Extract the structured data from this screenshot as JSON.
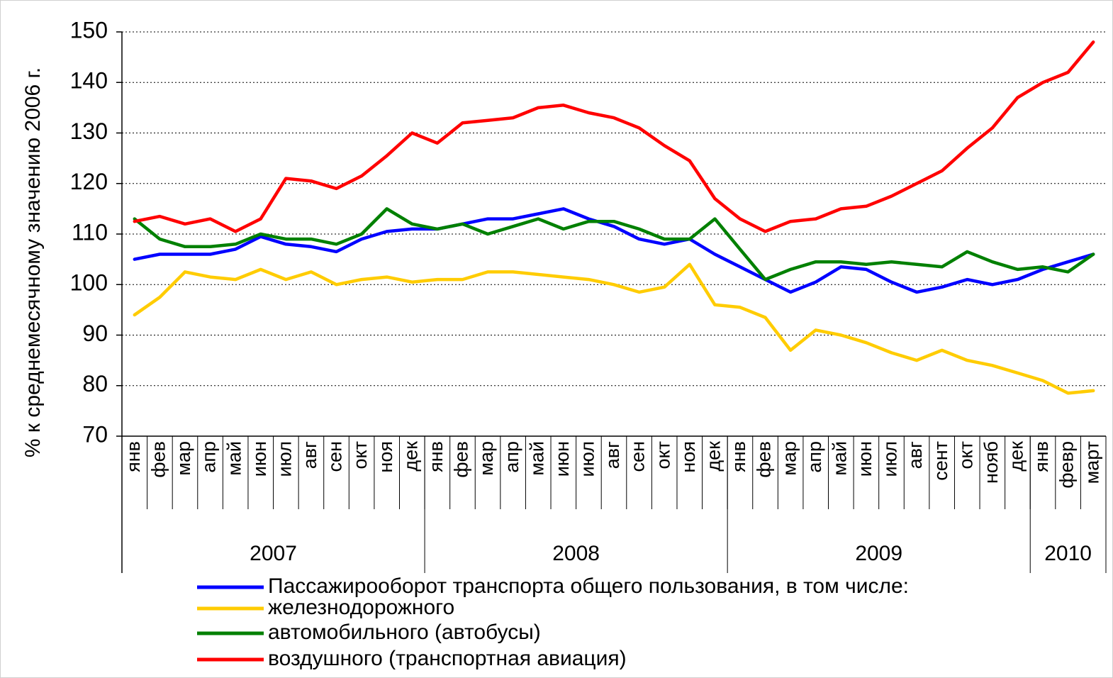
{
  "chart_data": {
    "type": "line",
    "y_label": "% к среднемесячному значению 2006 г.",
    "categories": [
      "янв",
      "фев",
      "мар",
      "апр",
      "май",
      "июн",
      "июл",
      "авг",
      "сен",
      "окт",
      "ноя",
      "дек",
      "янв",
      "фев",
      "мар",
      "апр",
      "май",
      "июн",
      "июл",
      "авг",
      "сен",
      "окт",
      "ноя",
      "дек",
      "янв",
      "фев",
      "мар",
      "апр",
      "май",
      "июн",
      "июл",
      "авг",
      "сент",
      "окт",
      "нояб",
      "дек",
      "янв",
      "февр",
      "март"
    ],
    "year_groups": [
      {
        "label": "2007",
        "count": 12
      },
      {
        "label": "2008",
        "count": 12
      },
      {
        "label": "2009",
        "count": 12
      },
      {
        "label": "2010",
        "count": 3
      }
    ],
    "series": [
      {
        "name": "Пассажирооборот транспорта общего пользования,  в том числе:",
        "color": "#0000ff",
        "values": [
          105,
          106,
          106,
          106,
          107,
          109.5,
          108,
          107.5,
          106.5,
          109,
          110.5,
          111,
          111,
          112,
          113,
          113,
          114,
          115,
          113,
          111.5,
          109,
          108,
          109,
          106,
          103.5,
          101,
          98.5,
          100.5,
          103.5,
          103,
          100.5,
          98.5,
          99.5,
          101,
          100,
          101,
          103,
          104.5,
          106
        ]
      },
      {
        "name": "железнодорожного",
        "color": "#ffcc00",
        "values": [
          94,
          97.5,
          102.5,
          101.5,
          101,
          103,
          101,
          102.5,
          100,
          101,
          101.5,
          100.5,
          101,
          101,
          102.5,
          102.5,
          102,
          101.5,
          101,
          100,
          98.5,
          99.5,
          104,
          96,
          95.5,
          93.5,
          87,
          91,
          90,
          88.5,
          86.5,
          85,
          87,
          85,
          84,
          82.5,
          81,
          78.5,
          79
        ]
      },
      {
        "name": "автомобильного (автобусы)",
        "color": "#008000",
        "values": [
          113,
          109,
          107.5,
          107.5,
          108,
          110,
          109,
          109,
          108,
          110,
          115,
          112,
          111,
          112,
          110,
          111.5,
          113,
          111,
          112.5,
          112.5,
          111,
          109,
          109,
          113,
          107,
          101,
          103,
          104.5,
          104.5,
          104,
          104.5,
          104,
          103.5,
          106.5,
          104.5,
          103,
          103.5,
          102.5,
          106
        ]
      },
      {
        "name": "воздушного (транспортная авиация)",
        "color": "#ff0000",
        "values": [
          112.5,
          113.5,
          112,
          113,
          110.5,
          113,
          121,
          120.5,
          119,
          121.5,
          125.5,
          130,
          128,
          132,
          132.5,
          133,
          135,
          135.5,
          134,
          133,
          131,
          127.5,
          124.5,
          117,
          113,
          110.5,
          112.5,
          113,
          115,
          115.5,
          117.5,
          120,
          122.5,
          127,
          131,
          137,
          140,
          142,
          148
        ]
      }
    ],
    "ylim": [
      70,
      150
    ],
    "yticks": [
      70,
      80,
      90,
      100,
      110,
      120,
      130,
      140,
      150
    ],
    "grid": true
  }
}
